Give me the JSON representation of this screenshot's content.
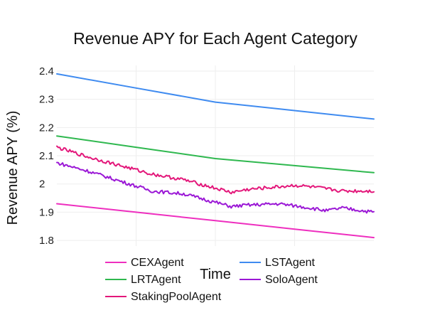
{
  "chart_data": {
    "type": "line",
    "title": "Revenue APY for Each Agent Category",
    "xlabel": "Time",
    "ylabel": "Revenue APY (%)",
    "ylim": [
      1.78,
      2.42
    ],
    "yticks": [
      "2.4",
      "2.3",
      "2.2",
      "2.1",
      "2",
      "1.9",
      "1.8"
    ],
    "ytick_values": [
      2.4,
      2.3,
      2.2,
      2.1,
      2.0,
      1.9,
      1.8
    ],
    "x_tick_labels_visible": false,
    "grid": true,
    "legend_position": "bottom",
    "series": [
      {
        "name": "CEXAgent",
        "color": "#ee2fbf",
        "x": [
          0,
          0.25,
          0.5,
          0.75,
          1.0
        ],
        "values": [
          1.93,
          1.9,
          1.87,
          1.84,
          1.81
        ]
      },
      {
        "name": "LSTAgent",
        "color": "#3f8bf0",
        "x": [
          0,
          0.25,
          0.5,
          0.75,
          1.0
        ],
        "values": [
          2.39,
          2.34,
          2.29,
          2.26,
          2.23
        ]
      },
      {
        "name": "LRTAgent",
        "color": "#2fb84f",
        "x": [
          0,
          0.25,
          0.5,
          0.75,
          1.0
        ],
        "values": [
          2.17,
          2.13,
          2.09,
          2.065,
          2.04
        ]
      },
      {
        "name": "SoloAgent",
        "color": "#9b18d6",
        "x": [
          0,
          0.1,
          0.2,
          0.3,
          0.4,
          0.5,
          0.55,
          0.6,
          0.7,
          0.8,
          0.85,
          0.9,
          1.0
        ],
        "values": [
          2.075,
          2.045,
          2.01,
          1.975,
          1.965,
          1.935,
          1.92,
          1.925,
          1.93,
          1.915,
          1.905,
          1.915,
          1.9
        ]
      },
      {
        "name": "StakingPoolAgent",
        "color": "#e3177a",
        "x": [
          0,
          0.1,
          0.2,
          0.3,
          0.4,
          0.5,
          0.55,
          0.6,
          0.7,
          0.75,
          0.8,
          0.9,
          1.0
        ],
        "values": [
          2.13,
          2.095,
          2.065,
          2.035,
          2.015,
          1.985,
          1.97,
          1.98,
          1.99,
          1.995,
          1.99,
          1.975,
          1.975
        ]
      }
    ]
  },
  "legend": {
    "col1": [
      "CEXAgent",
      "LRTAgent",
      "StakingPoolAgent"
    ],
    "col2": [
      "LSTAgent",
      "SoloAgent"
    ]
  }
}
